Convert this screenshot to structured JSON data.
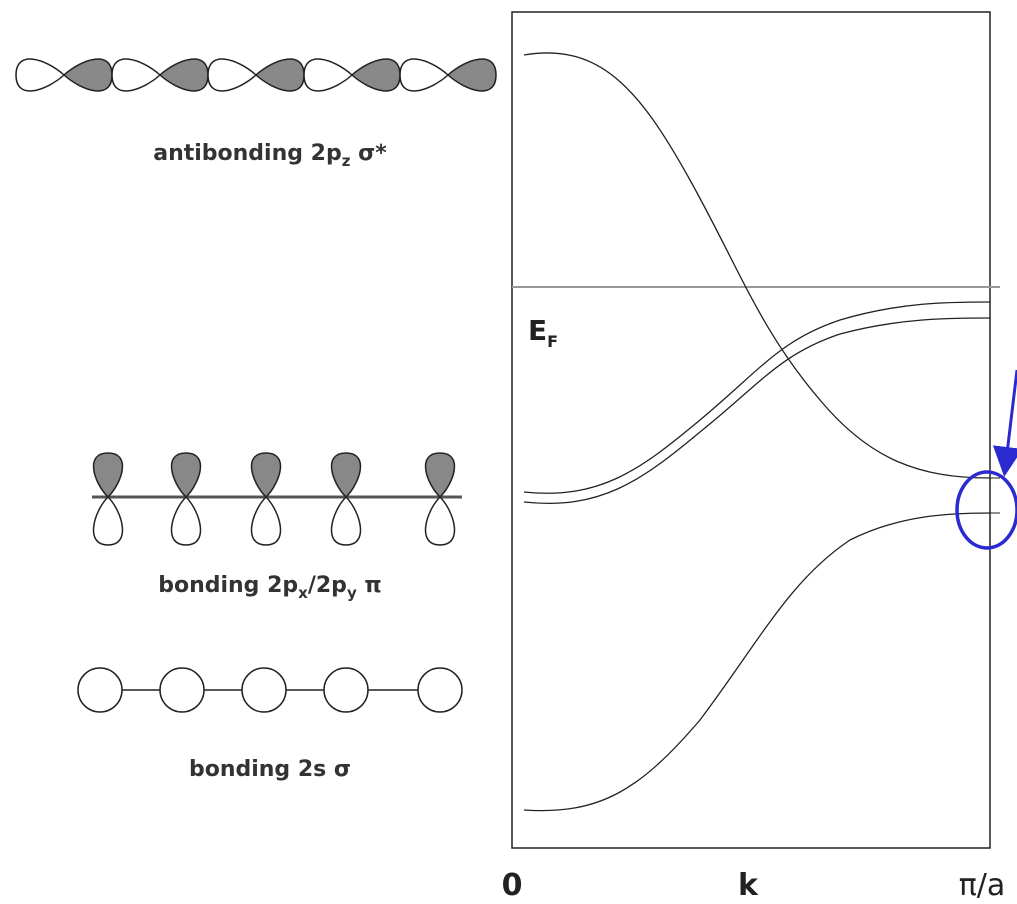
{
  "labels": {
    "antibonding": {
      "main": "antibonding 2p",
      "sub": "z",
      "tail": " σ*"
    },
    "pi": {
      "main": "bonding 2p",
      "sub1": "x",
      "mid": "/2p",
      "sub2": "y",
      "tail": " π"
    },
    "s": "bonding 2s σ"
  },
  "fermi": {
    "main": "E",
    "sub": "F"
  },
  "axis": {
    "start": "0",
    "label": "k",
    "end": "π/a"
  }
}
